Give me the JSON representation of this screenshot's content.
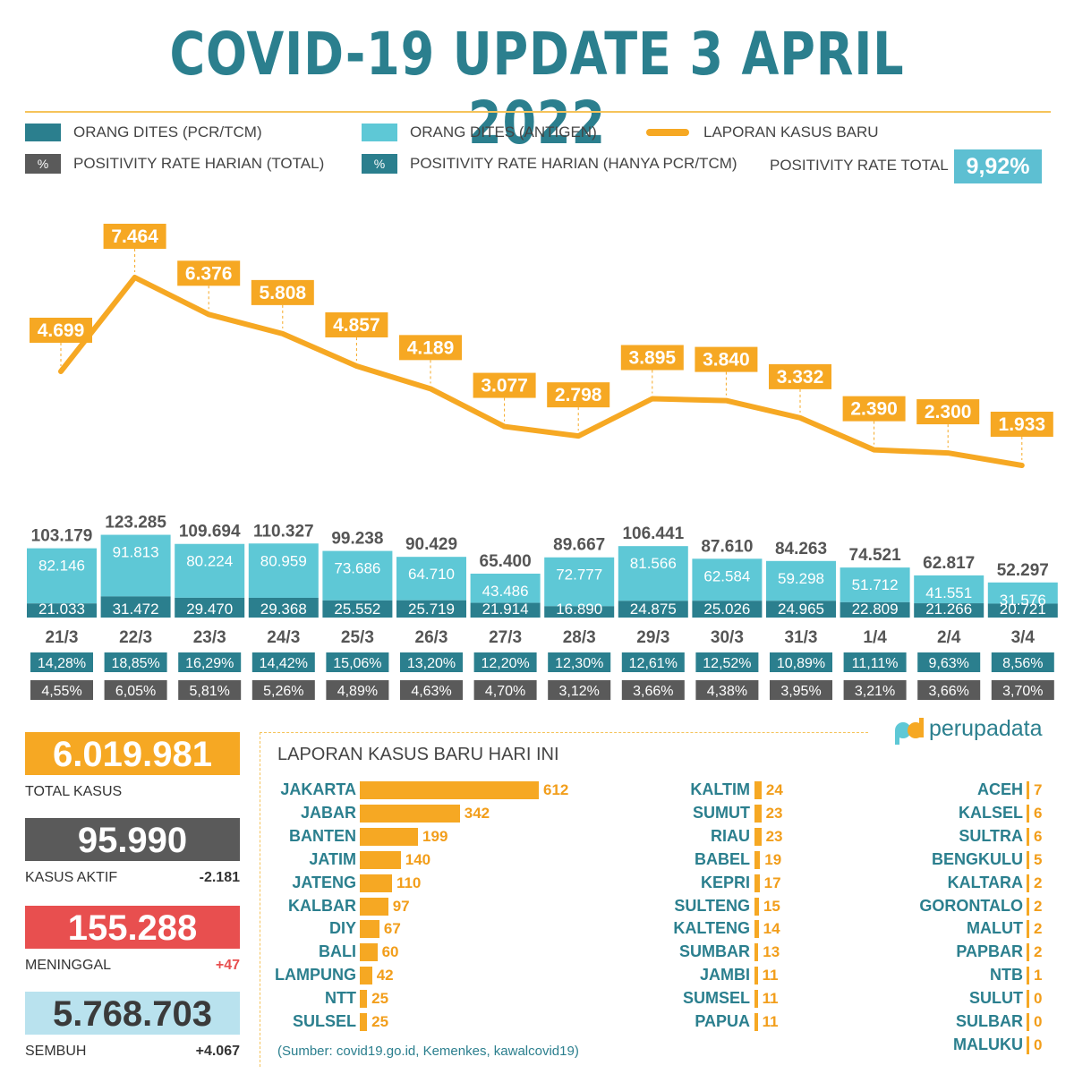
{
  "title": "COVID-19 UPDATE 3 APRIL 2022",
  "legend": {
    "pcr": "ORANG DITES (PCR/TCM)",
    "antigen": "ORANG DITES (ANTIGEN)",
    "cases": "LAPORAN KASUS BARU",
    "pct_symbol": "%",
    "pos_total": "POSITIVITY RATE HARIAN (TOTAL)",
    "pos_pcr": "POSITIVITY RATE HARIAN (HANYA PCR/TCM)",
    "rate_total_label": "POSITIVITY RATE TOTAL",
    "rate_total_value": "9,92%"
  },
  "colors": {
    "teal_dark": "#2b7f8e",
    "teal_light": "#5ec8d6",
    "orange": "#f6a823",
    "gray": "#5a5a5a",
    "red": "#e84f4f",
    "light_blue": "#b9e2ee"
  },
  "chart_data": {
    "type": "bar",
    "categories": [
      "21/3",
      "22/3",
      "23/3",
      "24/3",
      "25/3",
      "26/3",
      "27/3",
      "28/3",
      "29/3",
      "30/3",
      "31/3",
      "1/4",
      "2/4",
      "3/4"
    ],
    "new_cases": [
      4699,
      7464,
      6376,
      5808,
      4857,
      4189,
      3077,
      2798,
      3895,
      3840,
      3332,
      2390,
      2300,
      1933
    ],
    "new_cases_labels": [
      "4.699",
      "7.464",
      "6.376",
      "5.808",
      "4.857",
      "4.189",
      "3.077",
      "2.798",
      "3.895",
      "3.840",
      "3.332",
      "2.390",
      "2.300",
      "1.933"
    ],
    "total_tested": [
      103179,
      123285,
      109694,
      110327,
      99238,
      90429,
      65400,
      89667,
      106441,
      87610,
      84263,
      74521,
      62817,
      52297
    ],
    "total_tested_labels": [
      "103.179",
      "123.285",
      "109.694",
      "110.327",
      "99.238",
      "90.429",
      "65.400",
      "89.667",
      "106.441",
      "87.610",
      "84.263",
      "74.521",
      "62.817",
      "52.297"
    ],
    "antigen": [
      82146,
      91813,
      80224,
      80959,
      73686,
      64710,
      43486,
      72777,
      81566,
      62584,
      59298,
      51712,
      41551,
      31576
    ],
    "antigen_labels": [
      "82.146",
      "91.813",
      "80.224",
      "80.959",
      "73.686",
      "64.710",
      "43.486",
      "72.777",
      "81.566",
      "62.584",
      "59.298",
      "51.712",
      "41.551",
      "31.576"
    ],
    "pcr": [
      21033,
      31472,
      29470,
      29368,
      25552,
      25719,
      21914,
      16890,
      24875,
      25026,
      24965,
      22809,
      21266,
      20721
    ],
    "pcr_labels": [
      "21.033",
      "31.472",
      "29.470",
      "29.368",
      "25.552",
      "25.719",
      "21.914",
      "16.890",
      "24.875",
      "25.026",
      "24.965",
      "22.809",
      "21.266",
      "20.721"
    ],
    "positivity_pcr": [
      "14,28%",
      "18,85%",
      "16,29%",
      "14,42%",
      "15,06%",
      "13,20%",
      "12,20%",
      "12,30%",
      "12,61%",
      "12,52%",
      "10,89%",
      "11,11%",
      "9,63%",
      "8,56%"
    ],
    "positivity_total": [
      "4,55%",
      "6,05%",
      "5,81%",
      "5,26%",
      "4,89%",
      "4,63%",
      "4,70%",
      "3,12%",
      "3,66%",
      "4,38%",
      "3,95%",
      "3,21%",
      "3,66%",
      "3,70%"
    ]
  },
  "stats": {
    "total": {
      "value": "6.019.981",
      "label": "TOTAL KASUS"
    },
    "active": {
      "value": "95.990",
      "label": "KASUS AKTIF",
      "delta": "-2.181"
    },
    "deaths": {
      "value": "155.288",
      "label": "MENINGGAL",
      "delta": "+47"
    },
    "recovered": {
      "value": "5.768.703",
      "label": "SEMBUH",
      "delta": "+4.067"
    }
  },
  "today": {
    "title": "LAPORAN KASUS BARU HARI INI",
    "col1": [
      {
        "name": "JAKARTA",
        "value": 612
      },
      {
        "name": "JABAR",
        "value": 342
      },
      {
        "name": "BANTEN",
        "value": 199
      },
      {
        "name": "JATIM",
        "value": 140
      },
      {
        "name": "JATENG",
        "value": 110
      },
      {
        "name": "KALBAR",
        "value": 97
      },
      {
        "name": "DIY",
        "value": 67
      },
      {
        "name": "BALI",
        "value": 60
      },
      {
        "name": "LAMPUNG",
        "value": 42
      },
      {
        "name": "NTT",
        "value": 25
      },
      {
        "name": "SULSEL",
        "value": 25
      }
    ],
    "col2": [
      {
        "name": "KALTIM",
        "value": 24
      },
      {
        "name": "SUMUT",
        "value": 23
      },
      {
        "name": "RIAU",
        "value": 23
      },
      {
        "name": "BABEL",
        "value": 19
      },
      {
        "name": "KEPRI",
        "value": 17
      },
      {
        "name": "SULTENG",
        "value": 15
      },
      {
        "name": "KALTENG",
        "value": 14
      },
      {
        "name": "SUMBAR",
        "value": 13
      },
      {
        "name": "JAMBI",
        "value": 11
      },
      {
        "name": "SUMSEL",
        "value": 11
      },
      {
        "name": "PAPUA",
        "value": 11
      }
    ],
    "col3": [
      {
        "name": "ACEH",
        "value": 7
      },
      {
        "name": "KALSEL",
        "value": 6
      },
      {
        "name": "SULTRA",
        "value": 6
      },
      {
        "name": "BENGKULU",
        "value": 5
      },
      {
        "name": "KALTARA",
        "value": 2
      },
      {
        "name": "GORONTALO",
        "value": 2
      },
      {
        "name": "MALUT",
        "value": 2
      },
      {
        "name": "PAPBAR",
        "value": 2
      },
      {
        "name": "NTB",
        "value": 1
      },
      {
        "name": "SULUT",
        "value": 0
      },
      {
        "name": "SULBAR",
        "value": 0
      },
      {
        "name": "MALUKU",
        "value": 0
      }
    ],
    "source": "(Sumber: covid19.go.id, Kemenkes, kawalcovid19)"
  },
  "brand": "perupadata"
}
